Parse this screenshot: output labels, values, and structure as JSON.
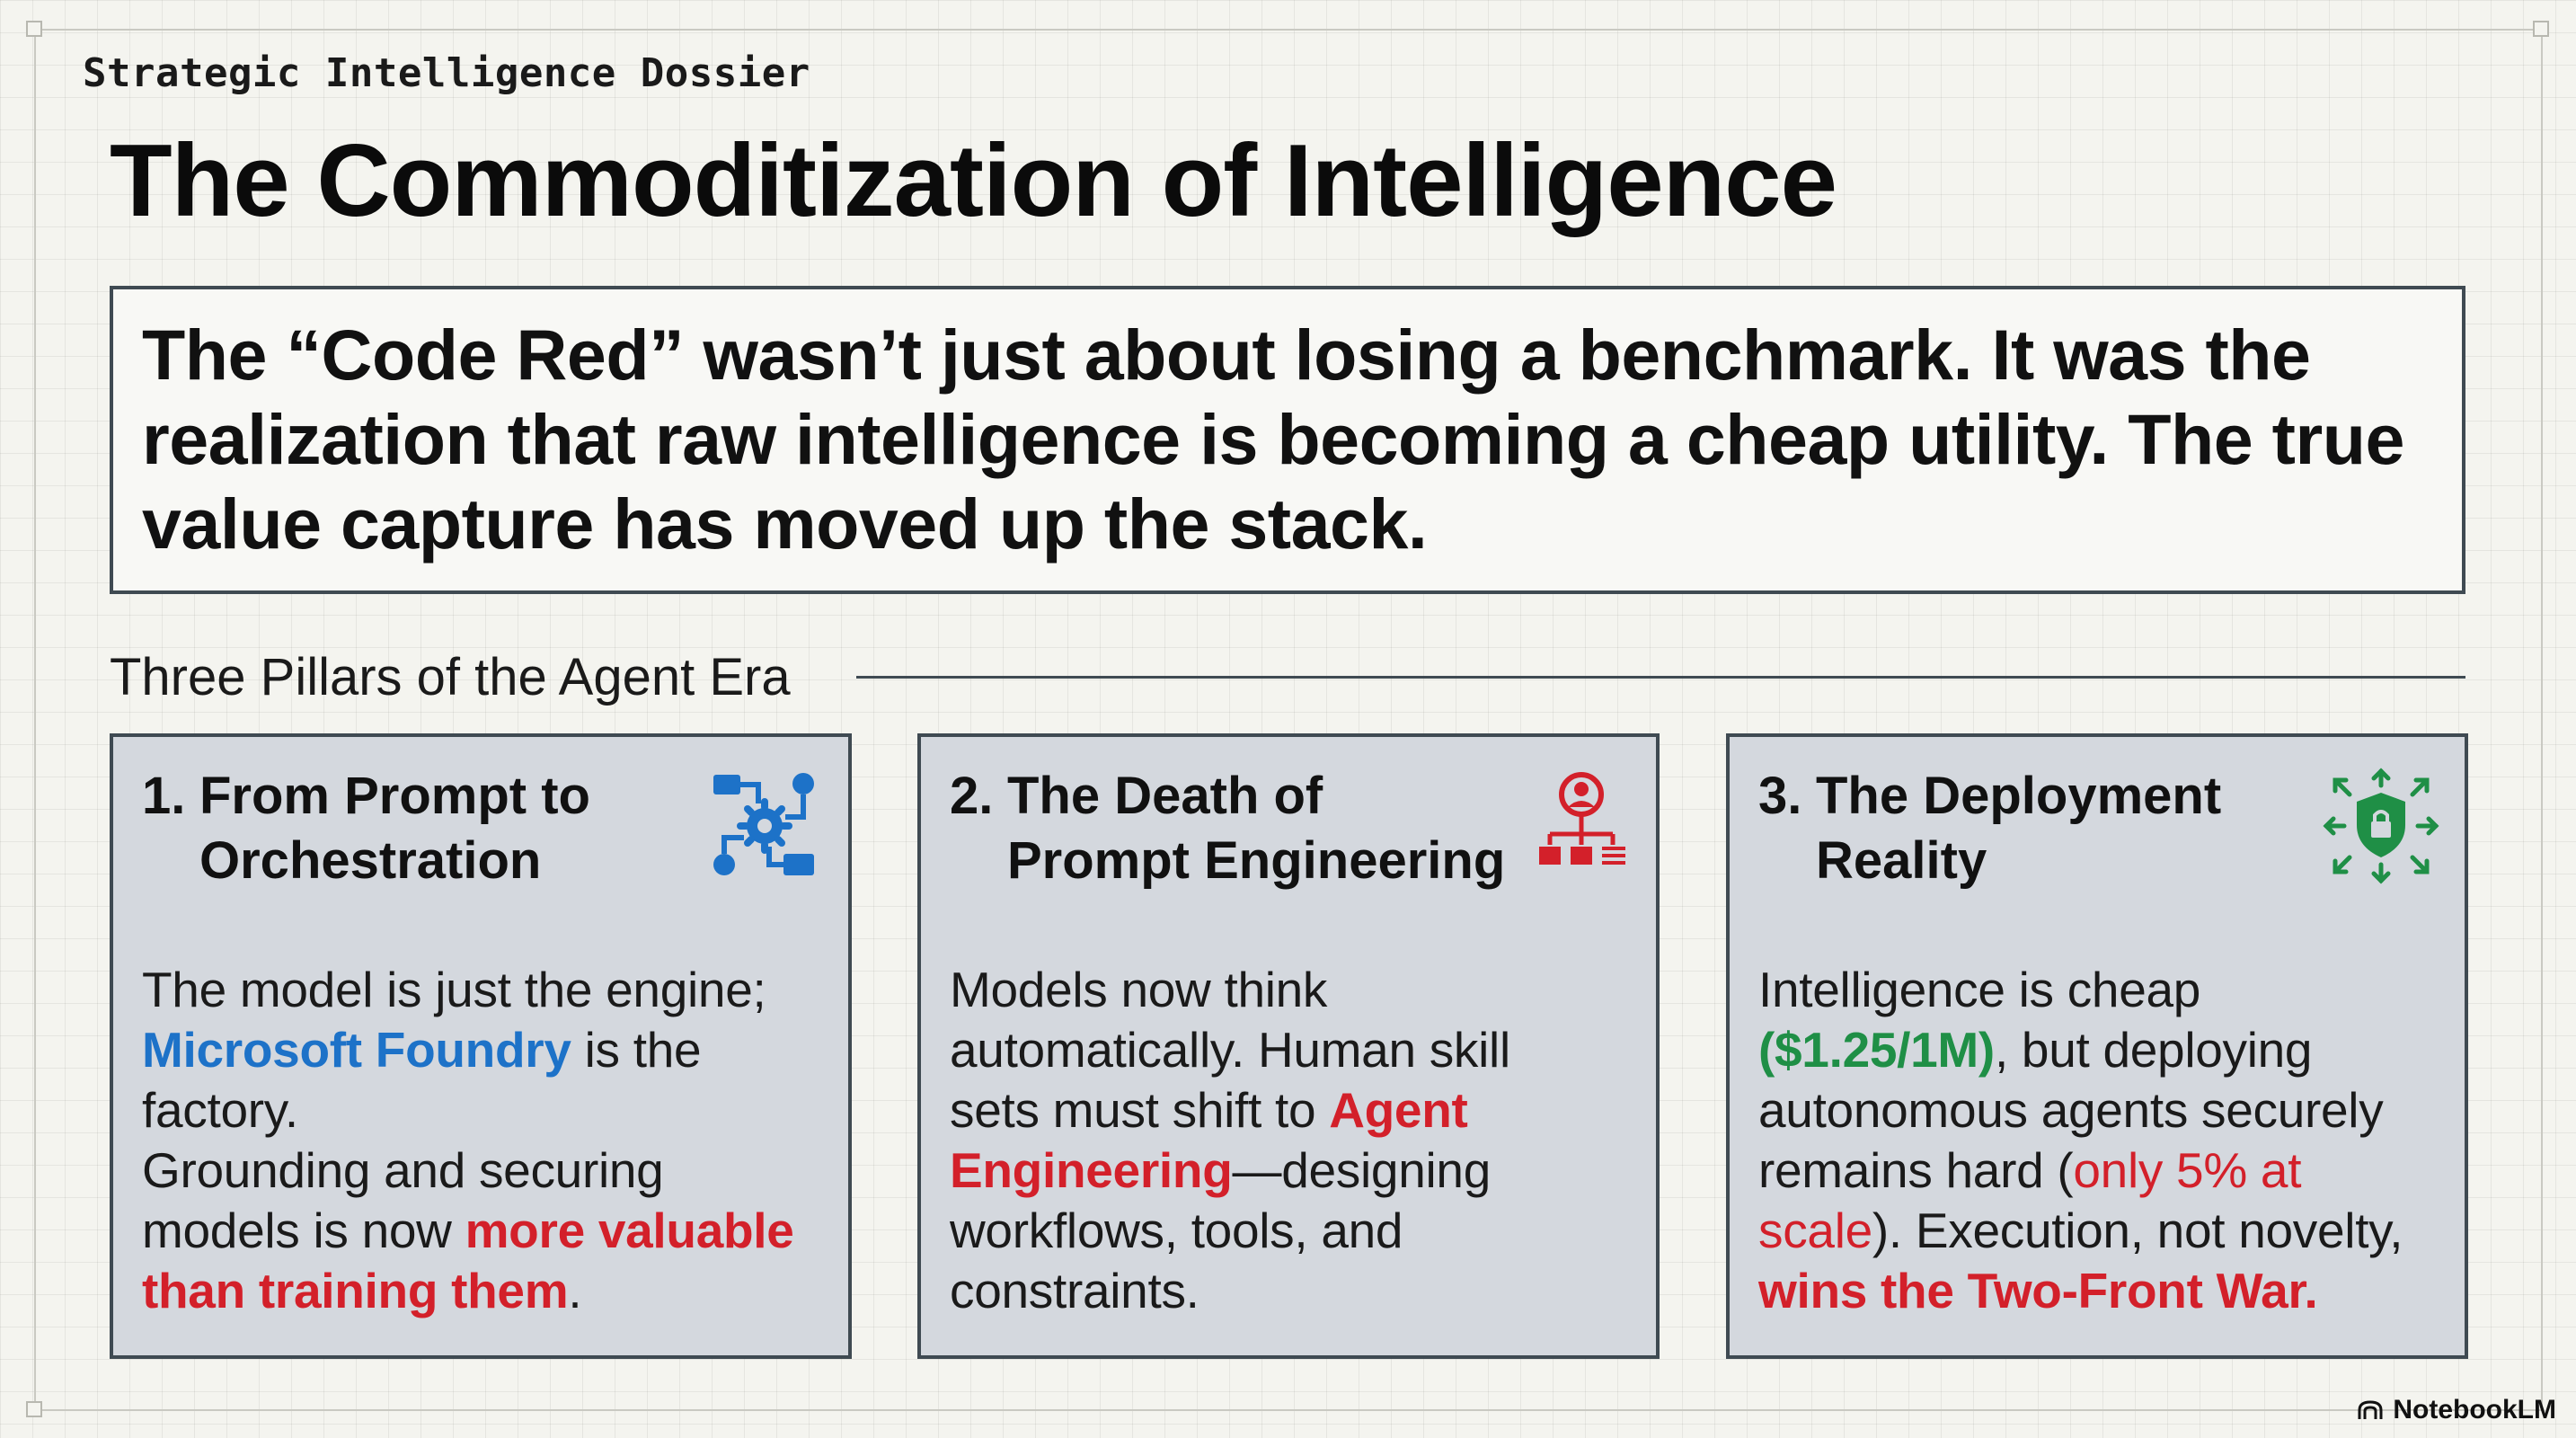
{
  "kicker": "Strategic Intelligence Dossier",
  "title": "The Commoditization of Intelligence",
  "thesis": "The “Code Red” wasn’t just about losing a benchmark. It was the realization that raw intelligence is becoming a cheap utility. The true value capture has moved up the stack.",
  "section_label": "Three Pillars of the Agent Era",
  "cards": [
    {
      "number": "1.",
      "title_line1": "From Prompt to",
      "title_line2": "Orchestration",
      "icon": "workflow-gear-icon",
      "body": {
        "p1": "The model is just the engine;",
        "highlight1": "Microsoft Foundry",
        "p2": " is the factory.",
        "p3": "Grounding and securing models is now ",
        "highlight2": "more valuable than training them",
        "p4": "."
      }
    },
    {
      "number": "2.",
      "title_line1": "The Death of",
      "title_line2": "Prompt Engineering",
      "icon": "agent-hierarchy-icon",
      "body": {
        "p1": "Models now think automatically. Human skill sets must shift to ",
        "highlight1": "Agent Engineering",
        "p2": "—designing workflows, tools, and constraints."
      }
    },
    {
      "number": "3.",
      "title_line1": "The Deployment",
      "title_line2": "Reality",
      "icon": "shield-lock-icon",
      "body": {
        "p1": "Intelligence is cheap ",
        "highlight1": "($1.25/1M)",
        "p2": ", but deploying autonomous agents securely remains hard (",
        "highlight2": "only 5% at scale",
        "p3": "). Execution, not novelty, ",
        "highlight3": "wins the Two-Front War."
      }
    }
  ],
  "badge": "NotebookLM",
  "colors": {
    "blue": "#1d72c8",
    "red": "#d3202a",
    "green": "#1f8f46",
    "card_bg": "#d4d8de",
    "border": "#3f4a52"
  }
}
